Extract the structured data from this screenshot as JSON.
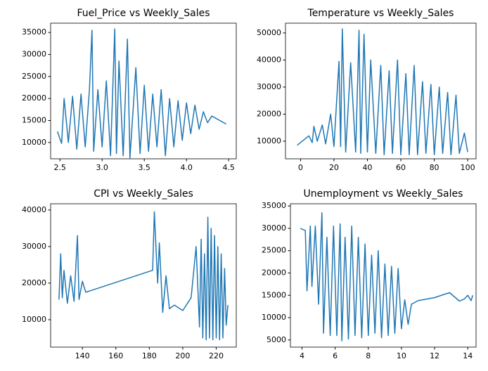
{
  "chart_data": [
    {
      "type": "line",
      "title": "Fuel_Price vs Weekly_Sales",
      "color": "#1f77b4",
      "x": [
        2.47,
        2.52,
        2.55,
        2.6,
        2.65,
        2.7,
        2.75,
        2.8,
        2.85,
        2.88,
        2.9,
        2.95,
        3.0,
        3.05,
        3.1,
        3.15,
        3.17,
        3.2,
        3.25,
        3.3,
        3.33,
        3.4,
        3.45,
        3.5,
        3.55,
        3.6,
        3.65,
        3.7,
        3.75,
        3.8,
        3.85,
        3.9,
        3.95,
        4.0,
        4.05,
        4.1,
        4.15,
        4.2,
        4.25,
        4.3,
        4.47
      ],
      "values": [
        12500,
        9800,
        20000,
        10000,
        20500,
        8500,
        21000,
        9000,
        22000,
        35500,
        8000,
        22000,
        9000,
        24000,
        7000,
        35800,
        7500,
        28500,
        7000,
        33500,
        6500,
        27000,
        7500,
        23000,
        8000,
        21000,
        9000,
        22000,
        7000,
        20000,
        9000,
        19500,
        10500,
        19000,
        12000,
        18500,
        13000,
        17000,
        14500,
        16000,
        14200
      ],
      "xlim": [
        2.39,
        4.59
      ],
      "ylim": [
        6300,
        37100
      ],
      "xticks": [
        2.5,
        {
          "value": 3,
          "label": "3.0"
        },
        3.5,
        {
          "value": 4,
          "label": "4.0"
        },
        4.5
      ],
      "yticks": [
        10000,
        15000,
        20000,
        25000,
        30000,
        35000
      ]
    },
    {
      "type": "line",
      "title": "Temperature vs Weekly_Sales",
      "color": "#1f77b4",
      "x": [
        -2,
        5,
        7,
        8,
        10,
        13,
        15,
        18,
        20,
        23,
        24,
        25,
        27,
        30,
        33,
        35,
        36,
        38,
        40,
        42,
        45,
        48,
        50,
        53,
        55,
        58,
        60,
        63,
        65,
        68,
        70,
        73,
        75,
        78,
        80,
        83,
        85,
        88,
        90,
        93,
        95,
        98,
        100
      ],
      "values": [
        8500,
        12000,
        9500,
        15500,
        10000,
        16000,
        9000,
        20000,
        8000,
        39500,
        8000,
        51500,
        6000,
        39000,
        6000,
        51000,
        5500,
        49500,
        6000,
        40000,
        5500,
        38000,
        5000,
        36000,
        5500,
        40000,
        5000,
        35000,
        5000,
        38000,
        5000,
        32000,
        5500,
        31000,
        5000,
        30000,
        5500,
        28000,
        5000,
        27000,
        5500,
        13000,
        6000
      ],
      "xlim": [
        -9,
        105
      ],
      "ylim": [
        3500,
        53600
      ],
      "xticks": [
        0,
        20,
        40,
        60,
        80,
        100
      ],
      "yticks": [
        10000,
        20000,
        30000,
        40000,
        50000
      ]
    },
    {
      "type": "line",
      "title": "CPI vs Weekly_Sales",
      "color": "#1f77b4",
      "x": [
        126,
        127,
        128,
        129,
        131,
        133,
        135,
        137,
        138,
        140,
        142,
        182,
        183,
        185,
        186,
        188,
        190,
        192,
        195,
        200,
        205,
        208,
        210,
        211,
        212,
        213,
        214,
        215,
        216,
        217,
        218,
        219,
        220,
        221,
        222,
        223,
        224,
        225,
        226,
        227
      ],
      "values": [
        15500,
        28000,
        16000,
        23500,
        14500,
        22000,
        15000,
        33000,
        15500,
        20500,
        17500,
        23500,
        39500,
        20000,
        31000,
        12000,
        22000,
        13000,
        14000,
        12500,
        16000,
        30000,
        8000,
        32000,
        5000,
        28000,
        4500,
        38000,
        5000,
        35000,
        4500,
        33000,
        5000,
        30000,
        4500,
        28000,
        5000,
        24000,
        8500,
        14000
      ],
      "xlim": [
        121,
        232
      ],
      "ylim": [
        2500,
        41700
      ],
      "xticks": [
        140,
        160,
        180,
        200,
        220
      ],
      "yticks": [
        10000,
        20000,
        30000,
        40000
      ]
    },
    {
      "type": "line",
      "title": "Unemployment vs Weekly_Sales",
      "color": "#1f77b4",
      "x": [
        3.9,
        4.2,
        4.3,
        4.5,
        4.6,
        4.8,
        5.0,
        5.2,
        5.3,
        5.5,
        5.7,
        5.9,
        6.1,
        6.3,
        6.4,
        6.6,
        6.8,
        7.0,
        7.2,
        7.4,
        7.6,
        7.8,
        8.0,
        8.2,
        8.4,
        8.6,
        8.8,
        9.0,
        9.2,
        9.4,
        9.6,
        9.8,
        10.0,
        10.2,
        10.4,
        10.6,
        11,
        12,
        12.9,
        13.5,
        13.8,
        14.0,
        14.2,
        14.3
      ],
      "values": [
        30000,
        29500,
        16000,
        30500,
        17000,
        30500,
        13000,
        33500,
        6500,
        28000,
        6000,
        30500,
        6000,
        31000,
        4800,
        28000,
        5200,
        30500,
        6000,
        28000,
        5500,
        26500,
        6000,
        24000,
        6500,
        25000,
        5500,
        22000,
        6000,
        21500,
        6500,
        21000,
        7500,
        14000,
        8500,
        13000,
        13800,
        14500,
        15600,
        13700,
        14200,
        15000,
        13800,
        15000
      ],
      "xlim": [
        3.3,
        14.5
      ],
      "ylim": [
        3400,
        35500
      ],
      "xticks": [
        4,
        6,
        8,
        10,
        12,
        14
      ],
      "yticks": [
        5000,
        10000,
        15000,
        20000,
        25000,
        30000,
        35000
      ]
    }
  ]
}
